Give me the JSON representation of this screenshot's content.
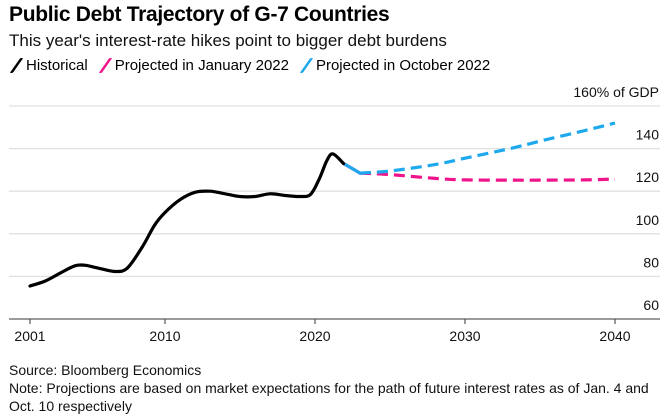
{
  "header": {
    "title": "Public Debt Trajectory of G-7 Countries",
    "subtitle": "This year's interest-rate hikes point to bigger debt burdens"
  },
  "legend": [
    {
      "label": "Historical",
      "color": "#000000"
    },
    {
      "label": "Projected in January 2022",
      "color": "#f0148c"
    },
    {
      "label": "Projected in October 2022",
      "color": "#1ea9ef"
    }
  ],
  "footer": {
    "source": "Source: Bloomberg Economics",
    "note": "Note: Projections are based on market expectations for the path of future interest rates as of Jan. 4 and Oct. 10 respectively"
  },
  "chart_data": {
    "type": "line",
    "title": "Public Debt Trajectory of G-7 Countries",
    "subtitle": "This year's interest-rate hikes point to bigger debt burdens",
    "xlabel": "",
    "ylabel": "% of GDP",
    "xlim": [
      2000.5,
      2042.5
    ],
    "ylim": [
      60,
      160
    ],
    "x_ticks": [
      2001,
      2010,
      2020,
      2030,
      2040
    ],
    "y_ticks": [
      60,
      80,
      100,
      120,
      140,
      160
    ],
    "y_tick_labels": [
      "60",
      "80",
      "100",
      "120",
      "140",
      "160% of GDP"
    ],
    "y_axis_position": "right",
    "grid": true,
    "legend_position": "top-left",
    "series": [
      {
        "name": "Historical",
        "color": "#000000",
        "style": "solid",
        "x": [
          2001,
          2002,
          2003,
          2004,
          2004.7,
          2005.5,
          2006.7,
          2007.5,
          2008.5,
          2009.3,
          2010,
          2011,
          2012,
          2013,
          2014,
          2015,
          2016,
          2017,
          2018,
          2019,
          2019.7,
          2020.3,
          2020.8,
          2021.2,
          2021.9
        ],
        "y": [
          75.5,
          77.8,
          81.5,
          85,
          85.2,
          84,
          82.3,
          84,
          94,
          104,
          110,
          116,
          119.5,
          120,
          118.8,
          117.5,
          117.5,
          118.8,
          118,
          117.5,
          118.5,
          126,
          134.5,
          137.5,
          133
        ]
      },
      {
        "name": "Projected in January 2022",
        "color": "#f0148c",
        "style": "dashed",
        "x": [
          2021.9,
          2023,
          2025,
          2028,
          2030,
          2033,
          2035,
          2038,
          2040
        ],
        "y": [
          133,
          128.5,
          127.8,
          126,
          125.3,
          125.2,
          125.2,
          125.3,
          125.7
        ]
      },
      {
        "name": "Projected in October 2022",
        "color": "#1ea9ef",
        "style": "dashed",
        "x": [
          2021.9,
          2023,
          2025,
          2028,
          2030,
          2033,
          2035,
          2038,
          2040
        ],
        "y": [
          133,
          128.5,
          129.5,
          132.5,
          135.5,
          140,
          143.5,
          148.5,
          152
        ]
      }
    ]
  }
}
